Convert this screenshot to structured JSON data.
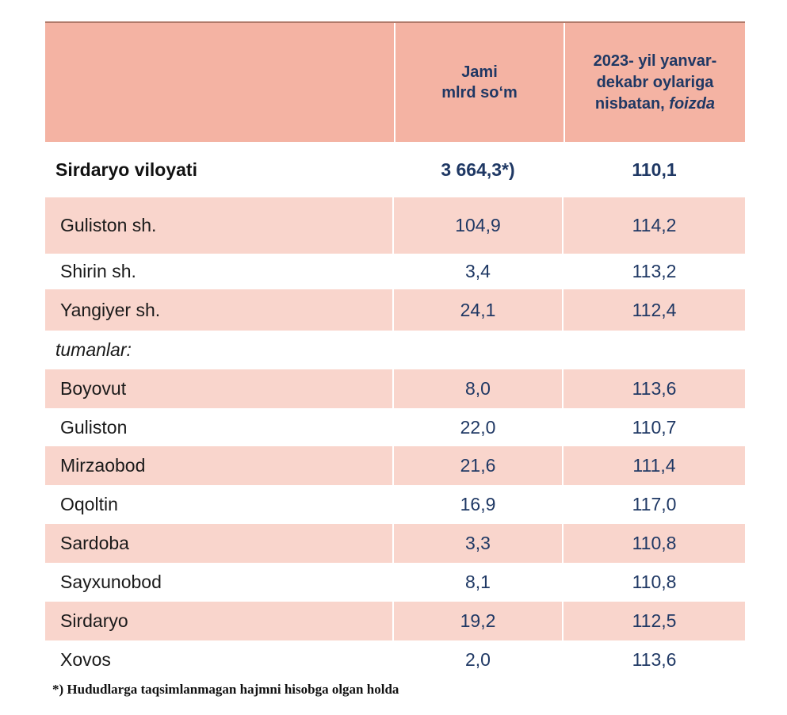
{
  "table": {
    "header": {
      "col1_line1": "Jami",
      "col1_line2": "mlrd so‘m",
      "col2_line1": "2023- yil yanvar-",
      "col2_line2": "dekabr oylariga",
      "col2_line3": "nisbatan,",
      "col2_line3_italic": "foizda"
    },
    "total": {
      "name": "Sirdaryo viloyati",
      "total": "3 664,3*)",
      "percent": "110,1"
    },
    "cities": [
      {
        "name": "Guliston  sh.",
        "total": "104,9",
        "percent": "114,2"
      },
      {
        "name": "Shirin sh.",
        "total": "3,4",
        "percent": "113,2"
      },
      {
        "name": "Yangiyer sh.",
        "total": "24,1",
        "percent": "112,4"
      }
    ],
    "districts_label": "tumanlar:",
    "districts": [
      {
        "name": "Boyovut",
        "total": "8,0",
        "percent": "113,6"
      },
      {
        "name": "Guliston",
        "total": "22,0",
        "percent": "110,7"
      },
      {
        "name": "Mirzaobod",
        "total": "21,6",
        "percent": "111,4"
      },
      {
        "name": "Oqoltin",
        "total": "16,9",
        "percent": "117,0"
      },
      {
        "name": "Sardoba",
        "total": "3,3",
        "percent": "110,8"
      },
      {
        "name": "Sayxunobod",
        "total": "8,1",
        "percent": "110,8"
      },
      {
        "name": "Sirdaryo",
        "total": "19,2",
        "percent": "112,5"
      },
      {
        "name": "Xovos",
        "total": "2,0",
        "percent": "113,6"
      }
    ]
  },
  "footnote": "*) Hududlarga taqsimlanmagan hajmni hisobga olgan holda",
  "colors": {
    "header_bg": "#f4b3a3",
    "row_shade": "#f9d5cc",
    "number_text": "#1f3864"
  }
}
